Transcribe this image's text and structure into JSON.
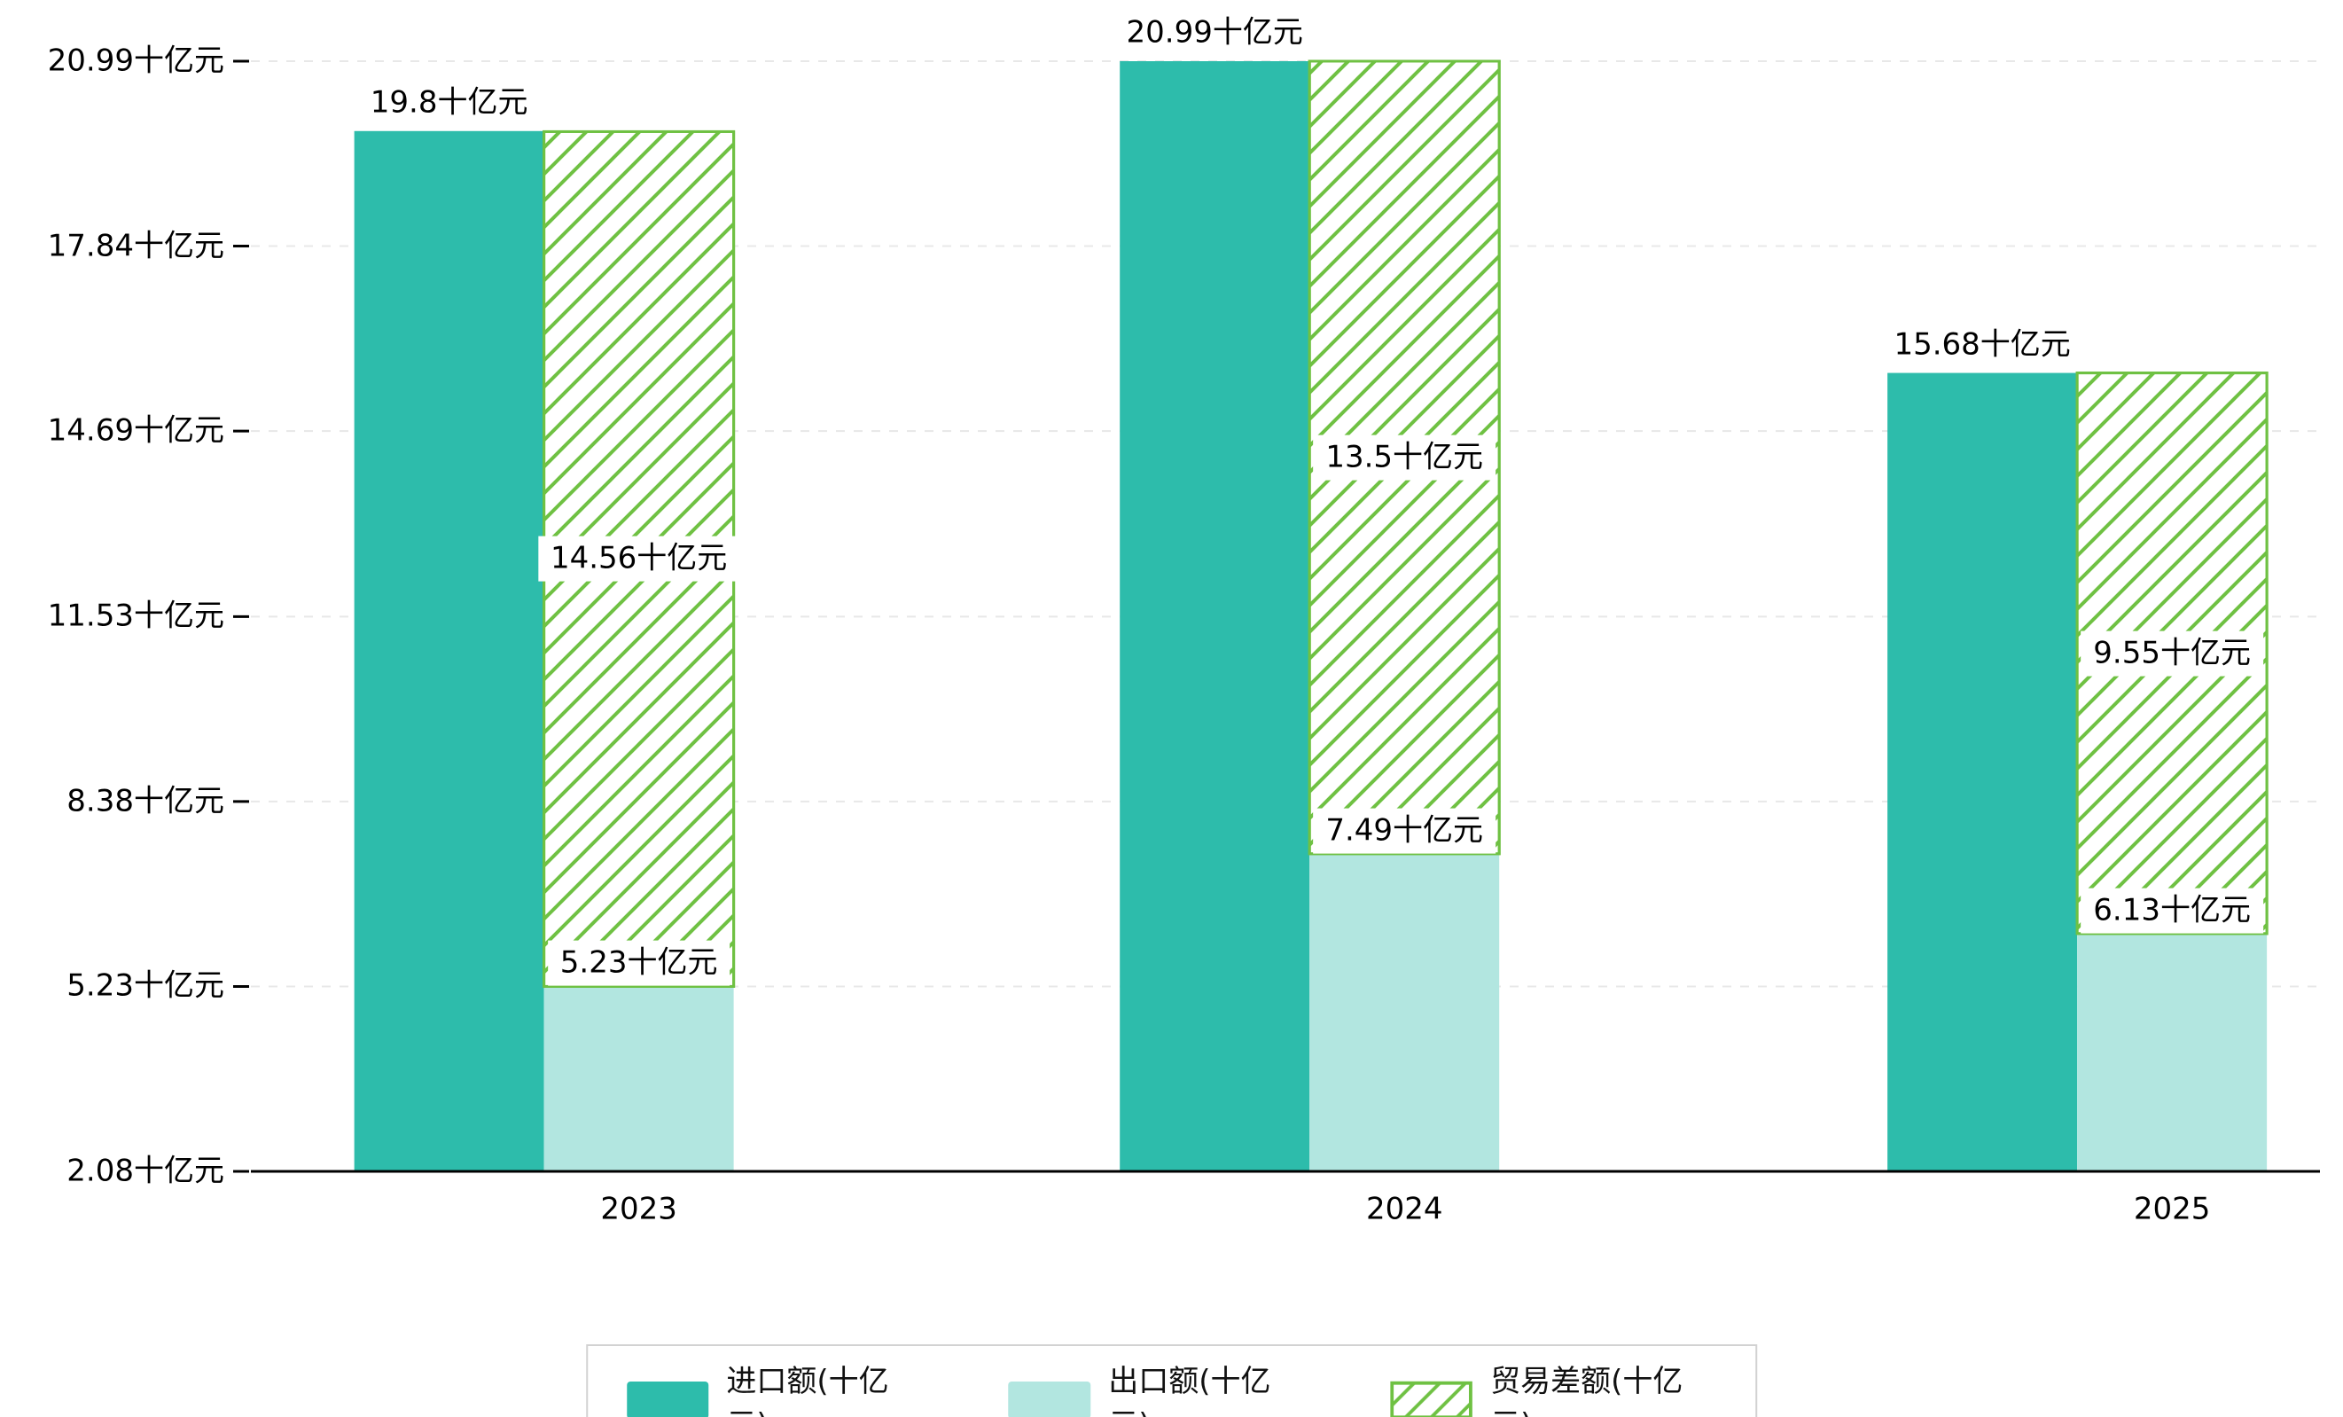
{
  "chart_data": {
    "type": "bar",
    "title": "",
    "categories": [
      "2023",
      "2024",
      "2025"
    ],
    "series": [
      {
        "name": "进口额(十亿元)",
        "role": "import",
        "values": [
          19.8,
          20.99,
          15.68
        ],
        "labels": [
          "19.8十亿元",
          "20.99十亿元",
          "15.68十亿元"
        ],
        "color": "#2dbcab",
        "pattern": "solid"
      },
      {
        "name": "出口额(十亿元)",
        "role": "export",
        "values": [
          5.23,
          7.49,
          6.13
        ],
        "labels": [
          "5.23十亿元",
          "7.49十亿元",
          "6.13十亿元"
        ],
        "color": "#b2e6e0",
        "pattern": "solid"
      },
      {
        "name": "贸易差额(十亿元)",
        "role": "balance",
        "values": [
          14.56,
          13.5,
          9.55
        ],
        "labels": [
          "14.56十亿元",
          "13.5十亿元",
          "9.55十亿元"
        ],
        "color": "#6fc143",
        "pattern": "hatched",
        "note": "floating bar spanning from export value up to import value"
      }
    ],
    "y_axis": {
      "unit": "十亿元",
      "min": 2.08,
      "max": 20.99,
      "tick_values": [
        2.08,
        5.23,
        8.38,
        11.53,
        14.69,
        17.84,
        20.99
      ],
      "tick_labels": [
        "2.08十亿元",
        "5.23十亿元",
        "8.38十亿元",
        "11.53十亿元",
        "14.69十亿元",
        "17.84十亿元",
        "20.99十亿元"
      ]
    },
    "grid": "horizontal dashed gridlines",
    "legend_position": "bottom-center",
    "colors": {
      "import": "#2dbcab",
      "export": "#b2e6e0",
      "balance": "#6fc143",
      "axis": "#000000",
      "gridline": "#e8e8e8",
      "label_text": "#000000",
      "label_bg": "#ffffff"
    }
  }
}
